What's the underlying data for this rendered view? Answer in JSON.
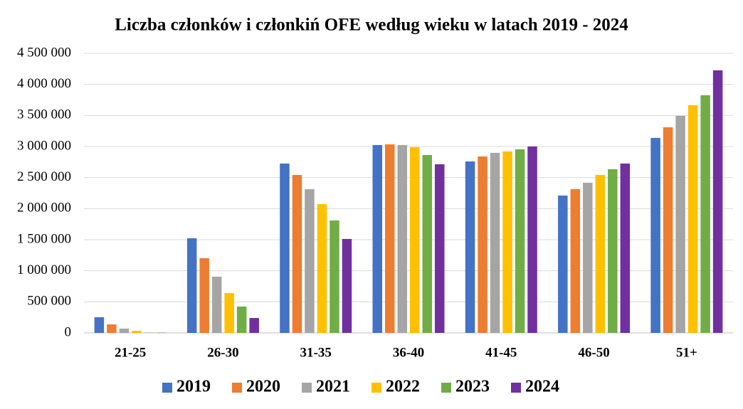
{
  "chart_data": {
    "type": "bar",
    "title": "Liczba członków i członkiń OFE według wieku w latach 2019 - 2024",
    "categories": [
      "21-25",
      "26-30",
      "31-35",
      "36-40",
      "41-45",
      "46-50",
      "51+"
    ],
    "series": [
      {
        "name": "2019",
        "color": "#4472c4",
        "values": [
          252000,
          1523000,
          2726000,
          3024000,
          2760000,
          2211000,
          3139000
        ]
      },
      {
        "name": "2020",
        "color": "#ed7d31",
        "values": [
          137000,
          1203000,
          2543000,
          3035000,
          2840000,
          2314000,
          3310000
        ]
      },
      {
        "name": "2021",
        "color": "#a5a5a5",
        "values": [
          69000,
          905000,
          2314000,
          3024000,
          2898000,
          2417000,
          3494000
        ]
      },
      {
        "name": "2022",
        "color": "#ffc000",
        "values": [
          34000,
          641000,
          2073000,
          2990000,
          2921000,
          2543000,
          3666000
        ]
      },
      {
        "name": "2023",
        "color": "#70ad47",
        "values": [
          5000,
          424000,
          1810000,
          2864000,
          2955000,
          2635000,
          3826000
        ]
      },
      {
        "name": "2024",
        "color": "#7030a0",
        "values": [
          3000,
          240000,
          1512000,
          2715000,
          3001000,
          2726000,
          4227000
        ]
      }
    ],
    "ylim": [
      0,
      4500000
    ],
    "yticks": [
      0,
      {
        "value": 500000,
        "label": "500 000"
      },
      {
        "value": 1000000,
        "label": "1 000 000"
      },
      {
        "value": 1500000,
        "label": "1 500 000"
      },
      {
        "value": 2000000,
        "label": "2 000 000"
      },
      {
        "value": 2500000,
        "label": "2 500 000"
      },
      {
        "value": 3000000,
        "label": "3 000 000"
      },
      {
        "value": 3500000,
        "label": "3 500 000"
      },
      {
        "value": 4000000,
        "label": "4 000 000"
      },
      {
        "value": 4500000,
        "label": "4 500 000"
      }
    ],
    "grid": true,
    "legend": "bottom"
  }
}
